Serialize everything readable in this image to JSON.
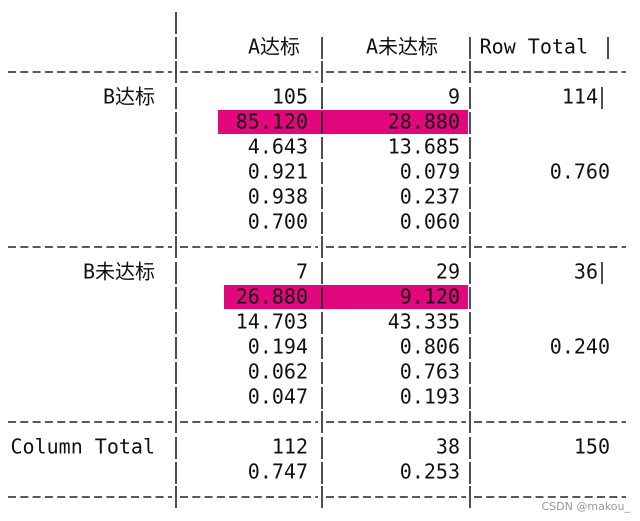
{
  "header": {
    "columns": [
      "A达标",
      "A未达标",
      "Row Total"
    ]
  },
  "rows": [
    {
      "label": "B达标",
      "cells": [
        [
          "105",
          "85.120",
          "4.643",
          "0.921",
          "0.938",
          "0.700"
        ],
        [
          "9",
          "28.880",
          "13.685",
          "0.079",
          "0.237",
          "0.060"
        ]
      ],
      "total": [
        "114",
        "0.760"
      ]
    },
    {
      "label": "B未达标",
      "cells": [
        [
          "7",
          "26.880",
          "14.703",
          "0.194",
          "0.062",
          "0.047"
        ],
        [
          "29",
          "9.120",
          "43.335",
          "0.806",
          "0.763",
          "0.193"
        ]
      ],
      "total": [
        "36",
        "0.240"
      ]
    }
  ],
  "column_total": {
    "label": "Column Total",
    "cells": [
      [
        "112",
        "0.747"
      ],
      [
        "38",
        "0.253"
      ]
    ],
    "total": [
      "150"
    ]
  },
  "watermark": "CSDN @makou_"
}
